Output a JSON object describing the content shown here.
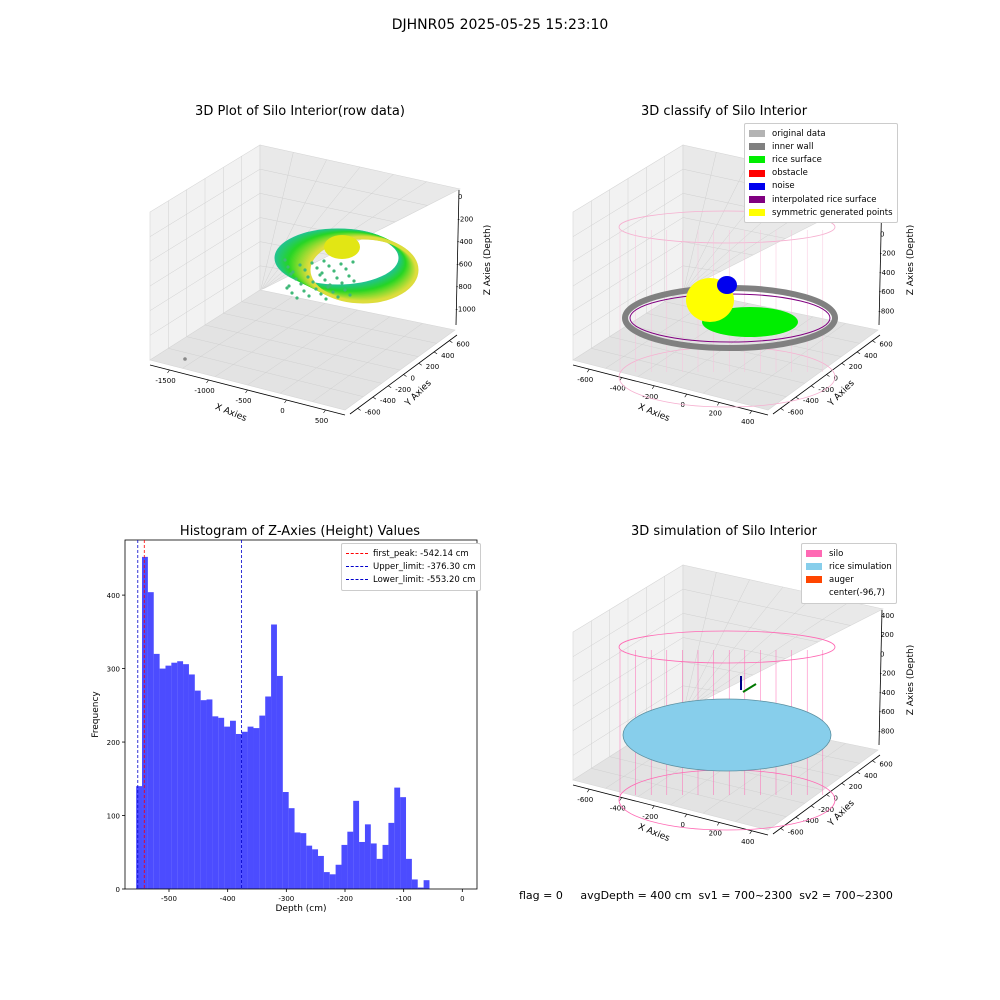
{
  "page": {
    "title": "DJHNR05 2025-05-25 15:23:10"
  },
  "panels": {
    "raw": {
      "title": "3D Plot of Silo Interior(row data)",
      "xlabel": "X Axies",
      "ylabel": "Y Axies",
      "zlabel": "Z Axies (Depth)",
      "xticks": [
        "-1500",
        "-1000",
        "-500",
        "0",
        "500"
      ],
      "yticks": [
        "-600",
        "-400",
        "-200",
        "0",
        "200",
        "400",
        "600"
      ],
      "zticks": [
        "0",
        "-200",
        "-400",
        "-600",
        "-800",
        "-1000"
      ]
    },
    "classify": {
      "title": "3D classify of Silo Interior",
      "xlabel": "X Axies",
      "ylabel": "Y Axies",
      "zlabel": "Z Axies (Depth)",
      "xticks": [
        "-600",
        "-400",
        "-200",
        "0",
        "200",
        "400"
      ],
      "yticks": [
        "-600",
        "-400",
        "-200",
        "0",
        "200",
        "400",
        "600"
      ],
      "zticks": [
        "400",
        "200",
        "0",
        "-200",
        "-400",
        "-600",
        "-800"
      ],
      "legend": [
        {
          "label": "original data",
          "color": "#b3b3b3"
        },
        {
          "label": "inner wall",
          "color": "#808080"
        },
        {
          "label": "rice surface",
          "color": "#00ee00"
        },
        {
          "label": "obstacle",
          "color": "#ff0000"
        },
        {
          "label": "noise",
          "color": "#0000ee"
        },
        {
          "label": "interpolated rice surface",
          "color": "#800080"
        },
        {
          "label": "symmetric generated points",
          "color": "#ffff00"
        }
      ]
    },
    "simulation": {
      "title": "3D simulation of Silo Interior",
      "xlabel": "X Axies",
      "ylabel": "Y Axies",
      "zlabel": "Z Axies (Depth)",
      "xticks": [
        "-600",
        "-400",
        "-200",
        "0",
        "200",
        "400"
      ],
      "yticks": [
        "-600",
        "-400",
        "-200",
        "0",
        "200",
        "400",
        "600"
      ],
      "zticks": [
        "400",
        "200",
        "0",
        "-200",
        "-400",
        "-600",
        "-800"
      ],
      "legend": [
        {
          "label": "silo",
          "color": "#ff69b4"
        },
        {
          "label": "rice simulation",
          "color": "#87ceeb"
        },
        {
          "label": "auger",
          "color": "#ff4500"
        },
        {
          "label": "center(-96,7)",
          "color": "#ffffff"
        }
      ]
    }
  },
  "status": {
    "text": "flag = 0     avgDepth = 400 cm  sv1 = 700~2300  sv2 = 700~2300"
  },
  "chart_data": {
    "type": "bar",
    "title": "Histogram of Z-Axies (Height) Values",
    "xlabel": "Depth (cm)",
    "ylabel": "Frequency",
    "xlim": [
      -575,
      25
    ],
    "ylim": [
      0,
      475
    ],
    "xticks": [
      -500,
      -400,
      -300,
      -200,
      -100,
      0
    ],
    "yticks": [
      0,
      100,
      200,
      300,
      400
    ],
    "bin_start": -556,
    "bin_width": 10,
    "values": [
      140,
      452,
      404,
      320,
      300,
      304,
      308,
      310,
      306,
      292,
      270,
      257,
      258,
      235,
      233,
      221,
      229,
      211,
      214,
      221,
      219,
      236,
      262,
      360,
      290,
      132,
      110,
      77,
      76,
      59,
      54,
      45,
      23,
      20,
      33,
      60,
      78,
      120,
      64,
      88,
      62,
      41,
      60,
      90,
      138,
      125,
      41,
      13,
      2,
      12
    ],
    "color": "#0000ff",
    "legend": [
      {
        "label": "first_peak: -542.14 cm",
        "color": "#ff0000",
        "x": -542.14
      },
      {
        "label": "Upper_limit: -376.30 cm",
        "color": "#0000cc",
        "x": -376.3
      },
      {
        "label": "Lower_limit: -553.20 cm",
        "color": "#0000cc",
        "x": -553.2
      }
    ]
  }
}
